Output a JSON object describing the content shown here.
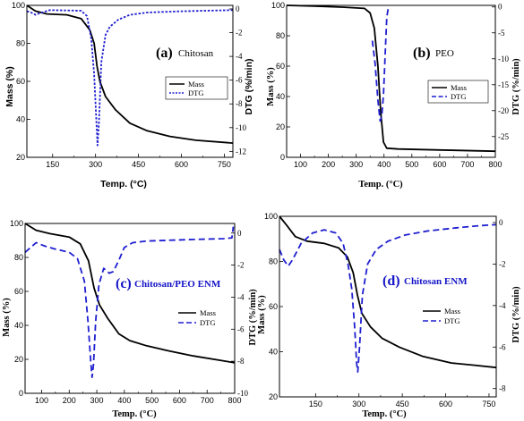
{
  "colors": {
    "mass": "#000000",
    "dtg": "#1f1fd0",
    "frame": "#000000",
    "blue_text": "#1414c8"
  },
  "chart_data": [
    {
      "id": "a",
      "type": "line",
      "panel_letter": "(a)",
      "panel_name": "Chitosan",
      "xlabel": "Temp. (°C)",
      "ylabel": "Mass (%)",
      "y2label": "DTG (%/min)",
      "xlim": [
        60,
        780
      ],
      "ylim": [
        20,
        100
      ],
      "y2lim": [
        -12.5,
        0.3
      ],
      "xticks": [
        150,
        300,
        450,
        600,
        750
      ],
      "yticks": [
        20,
        40,
        60,
        80,
        100
      ],
      "y2ticks": [
        0,
        -2,
        -4,
        -6,
        -8,
        -10,
        -12
      ],
      "legend": [
        "Mass",
        "DTG"
      ],
      "legend_position": "right-middle",
      "series": [
        {
          "name": "Mass",
          "axis": "left",
          "dash": "solid",
          "points": [
            [
              60,
              100
            ],
            [
              90,
              97
            ],
            [
              130,
              95.5
            ],
            [
              200,
              95
            ],
            [
              250,
              93
            ],
            [
              280,
              87
            ],
            [
              295,
              80
            ],
            [
              305,
              68
            ],
            [
              315,
              60
            ],
            [
              335,
              52
            ],
            [
              370,
              45
            ],
            [
              420,
              38
            ],
            [
              480,
              34
            ],
            [
              560,
              31
            ],
            [
              650,
              29
            ],
            [
              780,
              27.5
            ]
          ]
        },
        {
          "name": "DTG",
          "axis": "right",
          "dash": "dotted",
          "points": [
            [
              60,
              -0.2
            ],
            [
              75,
              -0.3
            ],
            [
              90,
              -0.5
            ],
            [
              100,
              -0.4
            ],
            [
              140,
              -0.1
            ],
            [
              250,
              -0.15
            ],
            [
              270,
              -0.6
            ],
            [
              285,
              -2.5
            ],
            [
              295,
              -5.5
            ],
            [
              302,
              -9
            ],
            [
              307,
              -11.5
            ],
            [
              312,
              -9.5
            ],
            [
              320,
              -4.5
            ],
            [
              335,
              -2.2
            ],
            [
              350,
              -1.5
            ],
            [
              380,
              -0.9
            ],
            [
              420,
              -0.5
            ],
            [
              480,
              -0.3
            ],
            [
              600,
              -0.2
            ],
            [
              780,
              -0.1
            ]
          ]
        }
      ]
    },
    {
      "id": "b",
      "type": "line",
      "panel_letter": "(b)",
      "panel_name": "PEO",
      "xlabel": "Temp. (°C)",
      "ylabel": "Mass (%)",
      "y2label": "DTG (%/min)",
      "xlim": [
        50,
        800
      ],
      "ylim": [
        0,
        100
      ],
      "y2lim": [
        -29,
        0.3
      ],
      "xticks": [
        100,
        200,
        300,
        400,
        500,
        600,
        700,
        800
      ],
      "yticks": [
        0,
        20,
        40,
        60,
        80,
        100
      ],
      "y2ticks": [
        0,
        -5,
        -10,
        -15,
        -20,
        -25
      ],
      "legend": [
        "Mass",
        "DTG"
      ],
      "legend_position": "right-middle",
      "series": [
        {
          "name": "Mass",
          "axis": "left",
          "dash": "solid",
          "points": [
            [
              50,
              100
            ],
            [
              150,
              99.5
            ],
            [
              250,
              98.8
            ],
            [
              330,
              98
            ],
            [
              350,
              95
            ],
            [
              365,
              85
            ],
            [
              378,
              60
            ],
            [
              388,
              30
            ],
            [
              398,
              10
            ],
            [
              410,
              6
            ],
            [
              450,
              5.5
            ],
            [
              600,
              4.8
            ],
            [
              800,
              4
            ]
          ]
        },
        {
          "name": "DTG",
          "axis": "right",
          "dash": "dashed",
          "points": [
            [
              358,
              -6.5
            ],
            [
              368,
              -11
            ],
            [
              378,
              -18
            ],
            [
              386,
              -22
            ],
            [
              392,
              -21
            ],
            [
              398,
              -17
            ],
            [
              405,
              -8
            ],
            [
              410,
              -2
            ],
            [
              415,
              -0.3
            ]
          ]
        }
      ]
    },
    {
      "id": "c",
      "type": "line",
      "panel_letter": "(c)",
      "panel_name": "Chitosan/PEO ENM",
      "xlabel": "Temp. (°C)",
      "ylabel": "Mass (%)",
      "y2label": "DTG (%/min)",
      "xlim": [
        40,
        800
      ],
      "ylim": [
        0,
        100
      ],
      "y2lim": [
        -10,
        0.6
      ],
      "xticks": [
        100,
        200,
        300,
        400,
        500,
        600,
        700,
        800
      ],
      "yticks": [
        0,
        20,
        40,
        60,
        80,
        100
      ],
      "y2ticks": [
        0,
        -2,
        -4,
        -6,
        -8,
        -10
      ],
      "legend": [
        "Mass",
        "DTG"
      ],
      "legend_position": "right-middle",
      "series": [
        {
          "name": "Mass",
          "axis": "left",
          "dash": "solid",
          "points": [
            [
              40,
              100
            ],
            [
              80,
              96
            ],
            [
              130,
              94
            ],
            [
              200,
              92
            ],
            [
              240,
              88
            ],
            [
              270,
              78
            ],
            [
              290,
              62
            ],
            [
              310,
              52
            ],
            [
              340,
              44
            ],
            [
              380,
              35
            ],
            [
              420,
              31
            ],
            [
              480,
              28
            ],
            [
              560,
              25
            ],
            [
              650,
              22
            ],
            [
              800,
              18
            ]
          ]
        },
        {
          "name": "DTG",
          "axis": "right",
          "dash": "dashed",
          "points": [
            [
              40,
              -1.2
            ],
            [
              60,
              -0.9
            ],
            [
              80,
              -0.6
            ],
            [
              110,
              -0.8
            ],
            [
              150,
              -1.0
            ],
            [
              200,
              -1.2
            ],
            [
              230,
              -1.6
            ],
            [
              255,
              -3.0
            ],
            [
              268,
              -5.5
            ],
            [
              278,
              -8.0
            ],
            [
              283,
              -9.0
            ],
            [
              288,
              -8.2
            ],
            [
              296,
              -5.5
            ],
            [
              308,
              -3.2
            ],
            [
              325,
              -2.2
            ],
            [
              345,
              -2.5
            ],
            [
              360,
              -2.4
            ],
            [
              380,
              -1.7
            ],
            [
              400,
              -0.9
            ],
            [
              430,
              -0.6
            ],
            [
              480,
              -0.5
            ],
            [
              560,
              -0.45
            ],
            [
              650,
              -0.4
            ],
            [
              760,
              -0.35
            ],
            [
              790,
              -0.3
            ],
            [
              795,
              0.4
            ]
          ]
        }
      ]
    },
    {
      "id": "d",
      "type": "line",
      "panel_letter": "(d)",
      "panel_name": "Chitosan ENM",
      "xlabel": "Temp. (°C)",
      "ylabel": "Mass (%)",
      "y2label": "DTG (%/min)",
      "xlim": [
        25,
        775
      ],
      "ylim": [
        20,
        100
      ],
      "y2lim": [
        -8.4,
        0.3
      ],
      "xticks": [
        150,
        300,
        450,
        600,
        750
      ],
      "yticks": [
        20,
        40,
        60,
        80,
        100
      ],
      "y2ticks": [
        0,
        -2,
        -4,
        -6,
        -8
      ],
      "legend": [
        "Mass",
        "DTG"
      ],
      "legend_position": "right-middle",
      "series": [
        {
          "name": "Mass",
          "axis": "left",
          "dash": "solid",
          "points": [
            [
              25,
              100
            ],
            [
              50,
              96
            ],
            [
              80,
              91
            ],
            [
              120,
              89
            ],
            [
              180,
              88
            ],
            [
              230,
              86
            ],
            [
              260,
              82
            ],
            [
              280,
              75
            ],
            [
              295,
              65
            ],
            [
              310,
              57
            ],
            [
              340,
              51
            ],
            [
              380,
              46
            ],
            [
              440,
              42
            ],
            [
              520,
              38
            ],
            [
              620,
              35
            ],
            [
              700,
              34
            ],
            [
              775,
              33
            ]
          ]
        },
        {
          "name": "DTG",
          "axis": "right",
          "dash": "dashed",
          "points": [
            [
              25,
              -1.3
            ],
            [
              40,
              -1.8
            ],
            [
              55,
              -2.1
            ],
            [
              70,
              -1.8
            ],
            [
              100,
              -1.0
            ],
            [
              140,
              -0.5
            ],
            [
              180,
              -0.35
            ],
            [
              220,
              -0.5
            ],
            [
              245,
              -1.0
            ],
            [
              262,
              -2.0
            ],
            [
              275,
              -3.2
            ],
            [
              285,
              -5.0
            ],
            [
              292,
              -6.8
            ],
            [
              296,
              -7.2
            ],
            [
              302,
              -6.0
            ],
            [
              312,
              -3.5
            ],
            [
              330,
              -2.0
            ],
            [
              360,
              -1.3
            ],
            [
              400,
              -0.9
            ],
            [
              460,
              -0.6
            ],
            [
              540,
              -0.4
            ],
            [
              640,
              -0.25
            ],
            [
              720,
              -0.15
            ],
            [
              775,
              -0.1
            ]
          ]
        }
      ]
    }
  ]
}
